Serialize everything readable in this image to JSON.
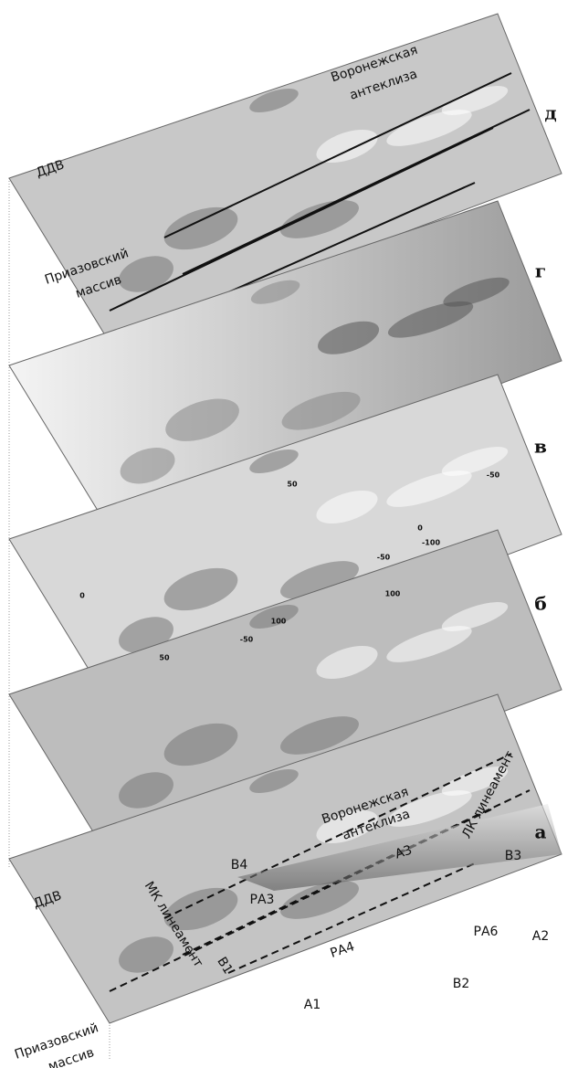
{
  "layers": [
    {
      "label": "д",
      "texts": [
        "Воронежская",
        "антеклиза",
        "ДДВ",
        "Приазовский",
        "массив"
      ]
    },
    {
      "label": "г",
      "texts": []
    },
    {
      "label": "в",
      "texts": []
    },
    {
      "label": "б",
      "texts": [
        "-50",
        "50",
        "0",
        "-100",
        "-50",
        "100",
        "50",
        "0",
        "-50",
        "100"
      ]
    },
    {
      "label": "а",
      "texts": [
        "Воронежская",
        "антеклиза",
        "ЛК линеамент",
        "В4",
        "В3",
        "А3",
        "РА3",
        "РА4",
        "РА6",
        "А2",
        "ДДВ",
        "МК линеамент",
        "В1",
        "В2",
        "А1",
        "Приазовский",
        "массив"
      ]
    }
  ]
}
